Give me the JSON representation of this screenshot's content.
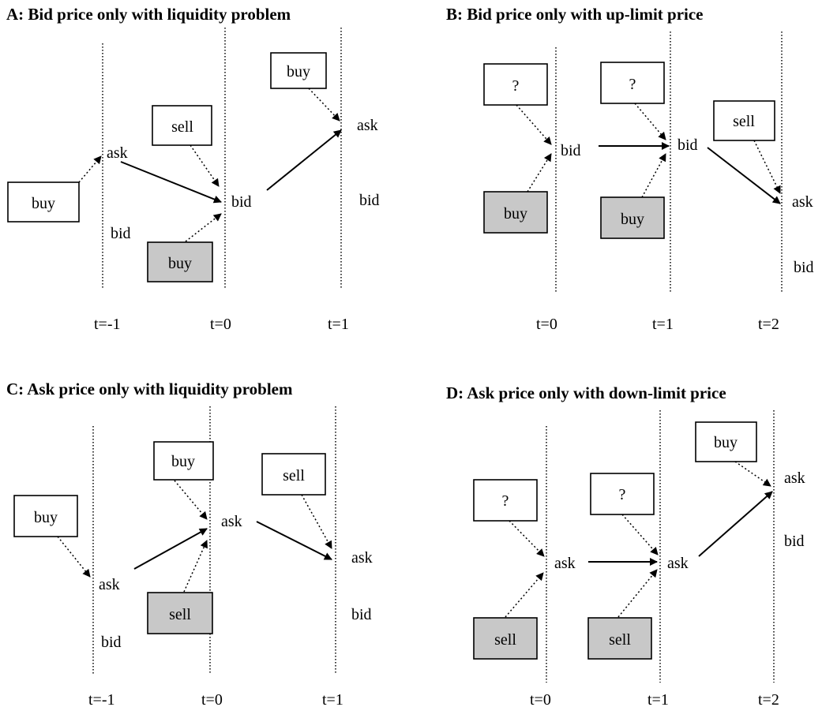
{
  "panels": [
    {
      "id": "A",
      "title": "A: Bid price only with liquidity problem",
      "time_labels": [
        "t=-1",
        "t=0",
        "t=1"
      ],
      "price_labels": [
        "ask",
        "bid",
        "bid",
        "ask",
        "bid"
      ],
      "order_boxes": [
        "buy",
        "sell",
        "buy",
        "buy"
      ]
    },
    {
      "id": "B",
      "title": "B: Bid price only with up-limit price",
      "time_labels": [
        "t=0",
        "t=1",
        "t=2"
      ],
      "price_labels": [
        "bid",
        "bid",
        "ask",
        "bid"
      ],
      "order_boxes": [
        "?",
        "buy",
        "?",
        "buy",
        "sell"
      ]
    },
    {
      "id": "C",
      "title": "C: Ask price only with liquidity problem",
      "time_labels": [
        "t=-1",
        "t=0",
        "t=1"
      ],
      "price_labels": [
        "ask",
        "bid",
        "ask",
        "ask",
        "bid"
      ],
      "order_boxes": [
        "buy",
        "buy",
        "sell",
        "sell"
      ]
    },
    {
      "id": "D",
      "title": "D: Ask price only with down-limit price",
      "time_labels": [
        "t=0",
        "t=1",
        "t=2"
      ],
      "price_labels": [
        "ask",
        "ask",
        "ask",
        "bid"
      ],
      "order_boxes": [
        "?",
        "sell",
        "?",
        "sell",
        "buy"
      ]
    }
  ]
}
